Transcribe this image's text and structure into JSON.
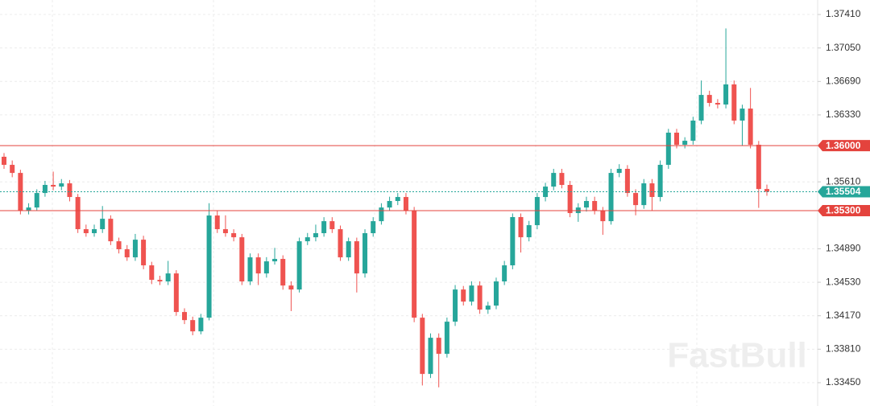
{
  "chart_data": {
    "type": "candlestick",
    "watermark": "FastBull",
    "up_color": "#26a69a",
    "down_color": "#ef5350",
    "ylim": [
      1.33199,
      1.37566
    ],
    "yticks": [
      {
        "value": 1.3741,
        "label": "1.37410"
      },
      {
        "value": 1.3705,
        "label": "1.37050"
      },
      {
        "value": 1.3669,
        "label": "1.36690"
      },
      {
        "value": 1.3633,
        "label": "1.36330"
      },
      {
        "value": 1.3561,
        "label": "1.35610"
      },
      {
        "value": 1.3489,
        "label": "1.34890"
      },
      {
        "value": 1.3453,
        "label": "1.34530"
      },
      {
        "value": 1.3417,
        "label": "1.34170"
      },
      {
        "value": 1.3381,
        "label": "1.33810"
      },
      {
        "value": 1.3345,
        "label": "1.33450"
      }
    ],
    "grid": true,
    "levels": [
      {
        "value": 1.36,
        "label": "1.36000"
      },
      {
        "value": 1.353,
        "label": "1.35300"
      }
    ],
    "level_color": "#e4433d",
    "last": {
      "value": 1.35504,
      "label": "1.35504"
    },
    "last_color": "#26a69a",
    "open": [
      1.3588,
      1.35793,
      1.35706,
      1.353,
      1.35334,
      1.3549,
      1.35577,
      1.35559,
      1.35594,
      1.35447,
      1.35101,
      1.35058,
      1.35101,
      1.35213,
      1.34971,
      1.34885,
      1.34798,
      1.34988,
      1.34712,
      1.34556,
      1.34539,
      1.34625,
      1.3421,
      1.34123,
      1.34002,
      1.34149,
      1.35248,
      1.35101,
      1.35058,
      1.35014,
      1.34539,
      1.34798,
      1.34625,
      1.34755,
      1.34781,
      1.34495,
      1.34452,
      1.34971,
      1.35014,
      1.35058,
      1.35187,
      1.35101,
      1.34798,
      1.34971,
      1.34625,
      1.35058,
      1.35187,
      1.35334,
      1.35404,
      1.35447,
      1.353,
      1.34149,
      1.33544,
      1.33933,
      1.3376,
      1.34106,
      1.34452,
      1.34322,
      1.34495,
      1.34236,
      1.34279,
      1.34539,
      1.34712,
      1.35231,
      1.35014,
      1.35144,
      1.35447,
      1.35559,
      1.35706,
      1.35577,
      1.35274,
      1.35334,
      1.35404,
      1.353,
      1.35187,
      1.35706,
      1.3575,
      1.3549,
      1.3536,
      1.35594,
      1.35447,
      1.35793,
      1.36139,
      1.36009,
      1.36052,
      1.36269,
      1.36545,
      1.36459,
      1.36442,
      1.36658,
      1.36269,
      1.36398,
      1.36009,
      1.35533
    ],
    "high": [
      1.3592,
      1.3584,
      1.3574,
      1.3538,
      1.3553,
      1.3562,
      1.3572,
      1.3564,
      1.3563,
      1.3548,
      1.3515,
      1.3515,
      1.3535,
      1.3525,
      1.3501,
      1.3493,
      1.3505,
      1.3503,
      1.3475,
      1.346,
      1.3476,
      1.3466,
      1.3425,
      1.3416,
      1.3419,
      1.3538,
      1.353,
      1.3525,
      1.351,
      1.3505,
      1.3484,
      1.3484,
      1.348,
      1.349,
      1.3482,
      1.3454,
      1.3501,
      1.3506,
      1.3515,
      1.3523,
      1.3523,
      1.3514,
      1.3501,
      1.3501,
      1.351,
      1.3523,
      1.3538,
      1.3545,
      1.3549,
      1.3549,
      1.3534,
      1.3419,
      1.3398,
      1.3398,
      1.3415,
      1.345,
      1.3449,
      1.3454,
      1.3454,
      1.3432,
      1.3458,
      1.3476,
      1.3527,
      1.3527,
      1.3519,
      1.3549,
      1.356,
      1.3575,
      1.3575,
      1.3562,
      1.3538,
      1.3545,
      1.3545,
      1.3534,
      1.3575,
      1.358,
      1.3579,
      1.3553,
      1.3564,
      1.3564,
      1.3584,
      1.3618,
      1.3618,
      1.3609,
      1.3631,
      1.367,
      1.3659,
      1.365,
      1.3726,
      1.367,
      1.3644,
      1.3662,
      1.3605,
      1.3558
    ],
    "low": [
      1.3575,
      1.3566,
      1.3526,
      1.3526,
      1.353,
      1.3545,
      1.3552,
      1.3552,
      1.354,
      1.3506,
      1.3502,
      1.3502,
      1.3506,
      1.3493,
      1.3484,
      1.3476,
      1.3476,
      1.3467,
      1.3451,
      1.345,
      1.345,
      1.3417,
      1.3408,
      1.3396,
      1.3397,
      1.3412,
      1.3506,
      1.3502,
      1.3497,
      1.345,
      1.345,
      1.345,
      1.3458,
      1.3472,
      1.3445,
      1.3422,
      1.3442,
      1.3493,
      1.3497,
      1.3502,
      1.3506,
      1.3476,
      1.3476,
      1.3442,
      1.3458,
      1.3502,
      1.3515,
      1.353,
      1.3536,
      1.3526,
      1.341,
      1.3342,
      1.335,
      1.334,
      1.3372,
      1.3406,
      1.3428,
      1.3428,
      1.3419,
      1.3419,
      1.3424,
      1.345,
      1.3467,
      1.3485,
      1.3497,
      1.351,
      1.354,
      1.3552,
      1.3554,
      1.3523,
      1.3518,
      1.3529,
      1.3526,
      1.3504,
      1.3515,
      1.3566,
      1.3545,
      1.3525,
      1.3532,
      1.353,
      1.354,
      1.3575,
      1.3597,
      1.3597,
      1.3601,
      1.3623,
      1.3642,
      1.364,
      1.364,
      1.3623,
      1.36,
      1.3597,
      1.3533,
      1.3546
    ],
    "close": [
      1.35793,
      1.35706,
      1.353,
      1.35334,
      1.3549,
      1.35577,
      1.35559,
      1.35594,
      1.35447,
      1.35101,
      1.35058,
      1.35101,
      1.35213,
      1.34971,
      1.34885,
      1.34798,
      1.34988,
      1.34712,
      1.34556,
      1.34539,
      1.34625,
      1.3421,
      1.34123,
      1.34002,
      1.34149,
      1.35248,
      1.35101,
      1.35058,
      1.35014,
      1.34539,
      1.34798,
      1.34625,
      1.34755,
      1.34781,
      1.34495,
      1.34452,
      1.34971,
      1.35014,
      1.35058,
      1.35187,
      1.35101,
      1.34798,
      1.34971,
      1.34625,
      1.35058,
      1.35187,
      1.35334,
      1.35404,
      1.35447,
      1.353,
      1.34149,
      1.33544,
      1.33933,
      1.3376,
      1.34106,
      1.34452,
      1.34322,
      1.34495,
      1.34236,
      1.34279,
      1.34539,
      1.34712,
      1.35231,
      1.35014,
      1.35144,
      1.35447,
      1.35559,
      1.35706,
      1.35577,
      1.35274,
      1.35334,
      1.35404,
      1.353,
      1.35187,
      1.35706,
      1.3575,
      1.3549,
      1.3536,
      1.35594,
      1.35447,
      1.35793,
      1.36139,
      1.36009,
      1.36052,
      1.36269,
      1.36545,
      1.36459,
      1.36442,
      1.36658,
      1.36269,
      1.36398,
      1.36009,
      1.35533,
      1.35504
    ]
  }
}
